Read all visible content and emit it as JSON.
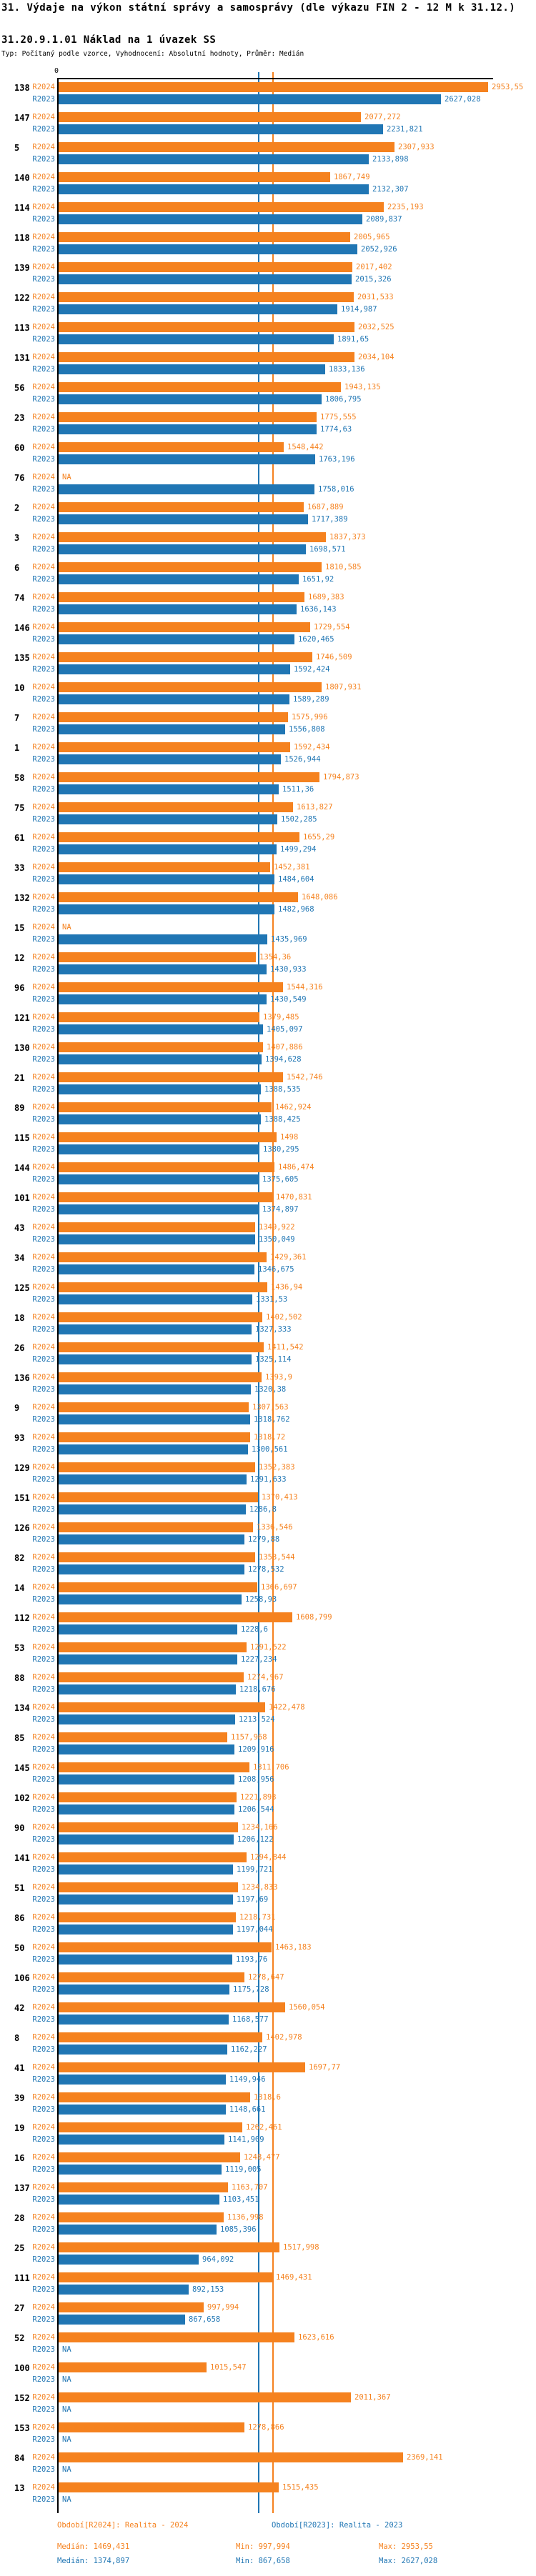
{
  "header": {
    "title": "31. Výdaje na výkon státní správy a samosprávy (dle výkazu FIN 2 - 12 M k 31.12.)",
    "subtitle": "31.20.9.1.01 Náklad na 1 úvazek SS",
    "type_line": "Typ: Počítaný podle vzorce, Vyhodnocení: Absolutní hodnoty, Průměr: Medián"
  },
  "chart_data": {
    "type": "bar",
    "orientation": "horizontal",
    "value_format": "decimal-comma",
    "na_label": "NA",
    "axis": {
      "zero_label": "0",
      "xmin": 0,
      "xmax": 3000,
      "grid": false
    },
    "legend_position": "bottom",
    "series": [
      {
        "key": "r2024",
        "label": "R2024",
        "name": "Období[R2024]: Realita - 2024",
        "color": "#f5821f",
        "median": 1469.431,
        "min": 997.994,
        "max": 2953.55
      },
      {
        "key": "r2023",
        "label": "R2023",
        "name": "Období[R2023]: Realita - 2023",
        "color": "#2076b4",
        "median": 1374.897,
        "min": 867.658,
        "max": 2627.028
      }
    ],
    "groups": [
      {
        "id": "138",
        "r2024": 2953.55,
        "r2023": 2627.028
      },
      {
        "id": "147",
        "r2024": 2077.272,
        "r2023": 2231.821
      },
      {
        "id": "5",
        "r2024": 2307.933,
        "r2023": 2133.898
      },
      {
        "id": "140",
        "r2024": 1867.749,
        "r2023": 2132.307
      },
      {
        "id": "114",
        "r2024": 2235.193,
        "r2023": 2089.837
      },
      {
        "id": "118",
        "r2024": 2005.965,
        "r2023": 2052.926
      },
      {
        "id": "139",
        "r2024": 2017.402,
        "r2023": 2015.326
      },
      {
        "id": "122",
        "r2024": 2031.533,
        "r2023": 1914.987
      },
      {
        "id": "113",
        "r2024": 2032.525,
        "r2023": 1891.65
      },
      {
        "id": "131",
        "r2024": 2034.104,
        "r2023": 1833.136
      },
      {
        "id": "56",
        "r2024": 1943.135,
        "r2023": 1806.795
      },
      {
        "id": "23",
        "r2024": 1775.555,
        "r2023": 1774.63
      },
      {
        "id": "60",
        "r2024": 1548.442,
        "r2023": 1763.196
      },
      {
        "id": "76",
        "r2024": null,
        "r2023": 1758.016
      },
      {
        "id": "2",
        "r2024": 1687.889,
        "r2023": 1717.389
      },
      {
        "id": "3",
        "r2024": 1837.373,
        "r2023": 1698.571
      },
      {
        "id": "6",
        "r2024": 1810.585,
        "r2023": 1651.92
      },
      {
        "id": "74",
        "r2024": 1689.383,
        "r2023": 1636.143
      },
      {
        "id": "146",
        "r2024": 1729.554,
        "r2023": 1620.465
      },
      {
        "id": "135",
        "r2024": 1746.509,
        "r2023": 1592.424
      },
      {
        "id": "10",
        "r2024": 1807.931,
        "r2023": 1589.289
      },
      {
        "id": "7",
        "r2024": 1575.996,
        "r2023": 1556.808
      },
      {
        "id": "1",
        "r2024": 1592.434,
        "r2023": 1526.944
      },
      {
        "id": "58",
        "r2024": 1794.873,
        "r2023": 1511.36
      },
      {
        "id": "75",
        "r2024": 1613.827,
        "r2023": 1502.285
      },
      {
        "id": "61",
        "r2024": 1655.29,
        "r2023": 1499.294
      },
      {
        "id": "33",
        "r2024": 1452.381,
        "r2023": 1484.604
      },
      {
        "id": "132",
        "r2024": 1648.086,
        "r2023": 1482.968
      },
      {
        "id": "15",
        "r2024": null,
        "r2023": 1435.969
      },
      {
        "id": "12",
        "r2024": 1354.36,
        "r2023": 1430.933
      },
      {
        "id": "96",
        "r2024": 1544.316,
        "r2023": 1430.549
      },
      {
        "id": "121",
        "r2024": 1379.485,
        "r2023": 1405.097
      },
      {
        "id": "130",
        "r2024": 1407.886,
        "r2023": 1394.628
      },
      {
        "id": "21",
        "r2024": 1542.746,
        "r2023": 1388.535
      },
      {
        "id": "89",
        "r2024": 1462.924,
        "r2023": 1388.425
      },
      {
        "id": "115",
        "r2024": 1498,
        "r2023": 1380.295
      },
      {
        "id": "144",
        "r2024": 1486.474,
        "r2023": 1375.605
      },
      {
        "id": "101",
        "r2024": 1470.831,
        "r2023": 1374.897
      },
      {
        "id": "43",
        "r2024": 1349.922,
        "r2023": 1350.049
      },
      {
        "id": "34",
        "r2024": 1429.361,
        "r2023": 1346.675
      },
      {
        "id": "125",
        "r2024": 1436.94,
        "r2023": 1331.53
      },
      {
        "id": "18",
        "r2024": 1402.502,
        "r2023": 1327.333
      },
      {
        "id": "26",
        "r2024": 1411.542,
        "r2023": 1325.114
      },
      {
        "id": "136",
        "r2024": 1393.9,
        "r2023": 1320.38
      },
      {
        "id": "9",
        "r2024": 1307.563,
        "r2023": 1318.762
      },
      {
        "id": "93",
        "r2024": 1318.72,
        "r2023": 1300.561
      },
      {
        "id": "129",
        "r2024": 1352.383,
        "r2023": 1291.633
      },
      {
        "id": "151",
        "r2024": 1370.413,
        "r2023": 1286.8
      },
      {
        "id": "126",
        "r2024": 1336.546,
        "r2023": 1279.88
      },
      {
        "id": "82",
        "r2024": 1353.544,
        "r2023": 1278.532
      },
      {
        "id": "14",
        "r2024": 1366.697,
        "r2023": 1258.93
      },
      {
        "id": "112",
        "r2024": 1608.799,
        "r2023": 1228.6
      },
      {
        "id": "53",
        "r2024": 1291.522,
        "r2023": 1227.234
      },
      {
        "id": "88",
        "r2024": 1274.967,
        "r2023": 1218.676
      },
      {
        "id": "134",
        "r2024": 1422.478,
        "r2023": 1213.524
      },
      {
        "id": "85",
        "r2024": 1157.968,
        "r2023": 1209.916
      },
      {
        "id": "145",
        "r2024": 1311.706,
        "r2023": 1208.956
      },
      {
        "id": "102",
        "r2024": 1221.893,
        "r2023": 1206.544
      },
      {
        "id": "90",
        "r2024": 1234.166,
        "r2023": 1206.122
      },
      {
        "id": "141",
        "r2024": 1294.844,
        "r2023": 1199.721
      },
      {
        "id": "51",
        "r2024": 1234.833,
        "r2023": 1197.69
      },
      {
        "id": "86",
        "r2024": 1218.731,
        "r2023": 1197.044
      },
      {
        "id": "50",
        "r2024": 1463.183,
        "r2023": 1193.76
      },
      {
        "id": "106",
        "r2024": 1278.647,
        "r2023": 1175.728
      },
      {
        "id": "42",
        "r2024": 1560.054,
        "r2023": 1168.577
      },
      {
        "id": "8",
        "r2024": 1402.978,
        "r2023": 1162.227
      },
      {
        "id": "41",
        "r2024": 1697.77,
        "r2023": 1149.946
      },
      {
        "id": "39",
        "r2024": 1318.6,
        "r2023": 1148.661
      },
      {
        "id": "19",
        "r2024": 1262.461,
        "r2023": 1141.909
      },
      {
        "id": "16",
        "r2024": 1248.477,
        "r2023": 1119.005
      },
      {
        "id": "137",
        "r2024": 1163.707,
        "r2023": 1103.451
      },
      {
        "id": "28",
        "r2024": 1136.998,
        "r2023": 1085.396
      },
      {
        "id": "25",
        "r2024": 1517.998,
        "r2023": 964.092
      },
      {
        "id": "111",
        "r2024": 1469.431,
        "r2023": 892.153
      },
      {
        "id": "27",
        "r2024": 997.994,
        "r2023": 867.658
      },
      {
        "id": "52",
        "r2024": 1623.616,
        "r2023": null
      },
      {
        "id": "100",
        "r2024": 1015.547,
        "r2023": null
      },
      {
        "id": "152",
        "r2024": 2011.367,
        "r2023": null
      },
      {
        "id": "153",
        "r2024": 1278.866,
        "r2023": null
      },
      {
        "id": "84",
        "r2024": 2369.141,
        "r2023": null
      },
      {
        "id": "13",
        "r2024": 1515.435,
        "r2023": null
      }
    ]
  },
  "legend": {
    "r2024": {
      "period": "Období[R2024]: Realita - 2024",
      "median": "Medián: 1469,431",
      "min": "Min: 997,994",
      "max": "Max: 2953,55"
    },
    "r2023": {
      "period": "Období[R2023]: Realita - 2023",
      "median": "Medián: 1374,897",
      "min": "Min: 867,658",
      "max": "Max: 2627,028"
    }
  }
}
